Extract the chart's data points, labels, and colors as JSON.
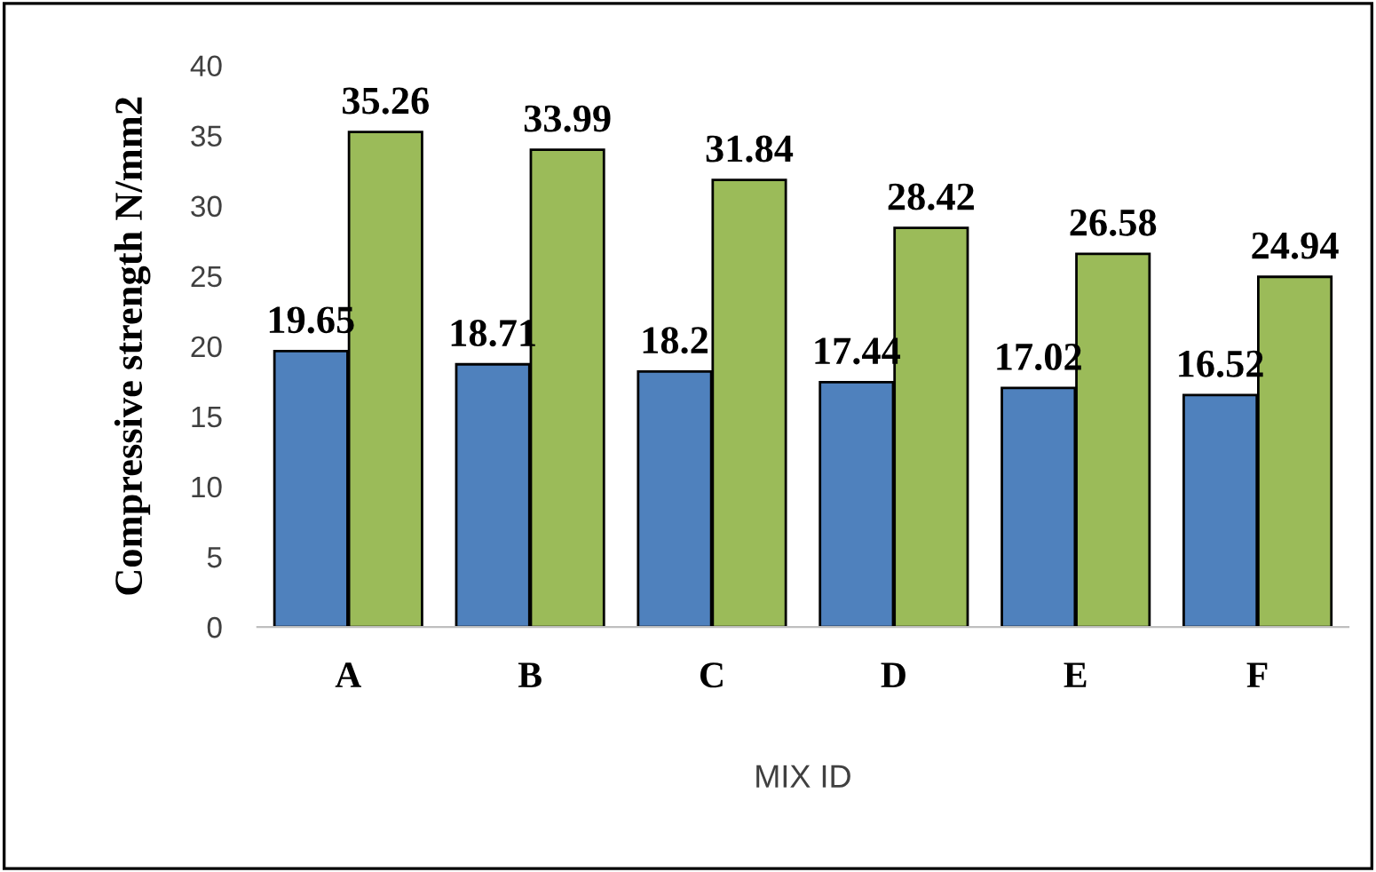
{
  "chart_data": {
    "type": "bar",
    "xlabel": "MIX ID",
    "ylabel": "Compressive strength N/mm2",
    "categories": [
      "A",
      "B",
      "C",
      "D",
      "E",
      "F"
    ],
    "series": [
      {
        "color": "#4f81bd",
        "values": [
          19.65,
          18.71,
          18.2,
          17.44,
          17.02,
          16.52
        ]
      },
      {
        "color": "#9bbb59",
        "values": [
          35.26,
          33.99,
          31.84,
          28.42,
          26.58,
          24.94
        ]
      }
    ],
    "ylim": [
      0,
      40
    ],
    "yticks": [
      0,
      5,
      10,
      15,
      20,
      25,
      30,
      35,
      40
    ],
    "data_labels": true,
    "grid": false,
    "legend": false
  }
}
